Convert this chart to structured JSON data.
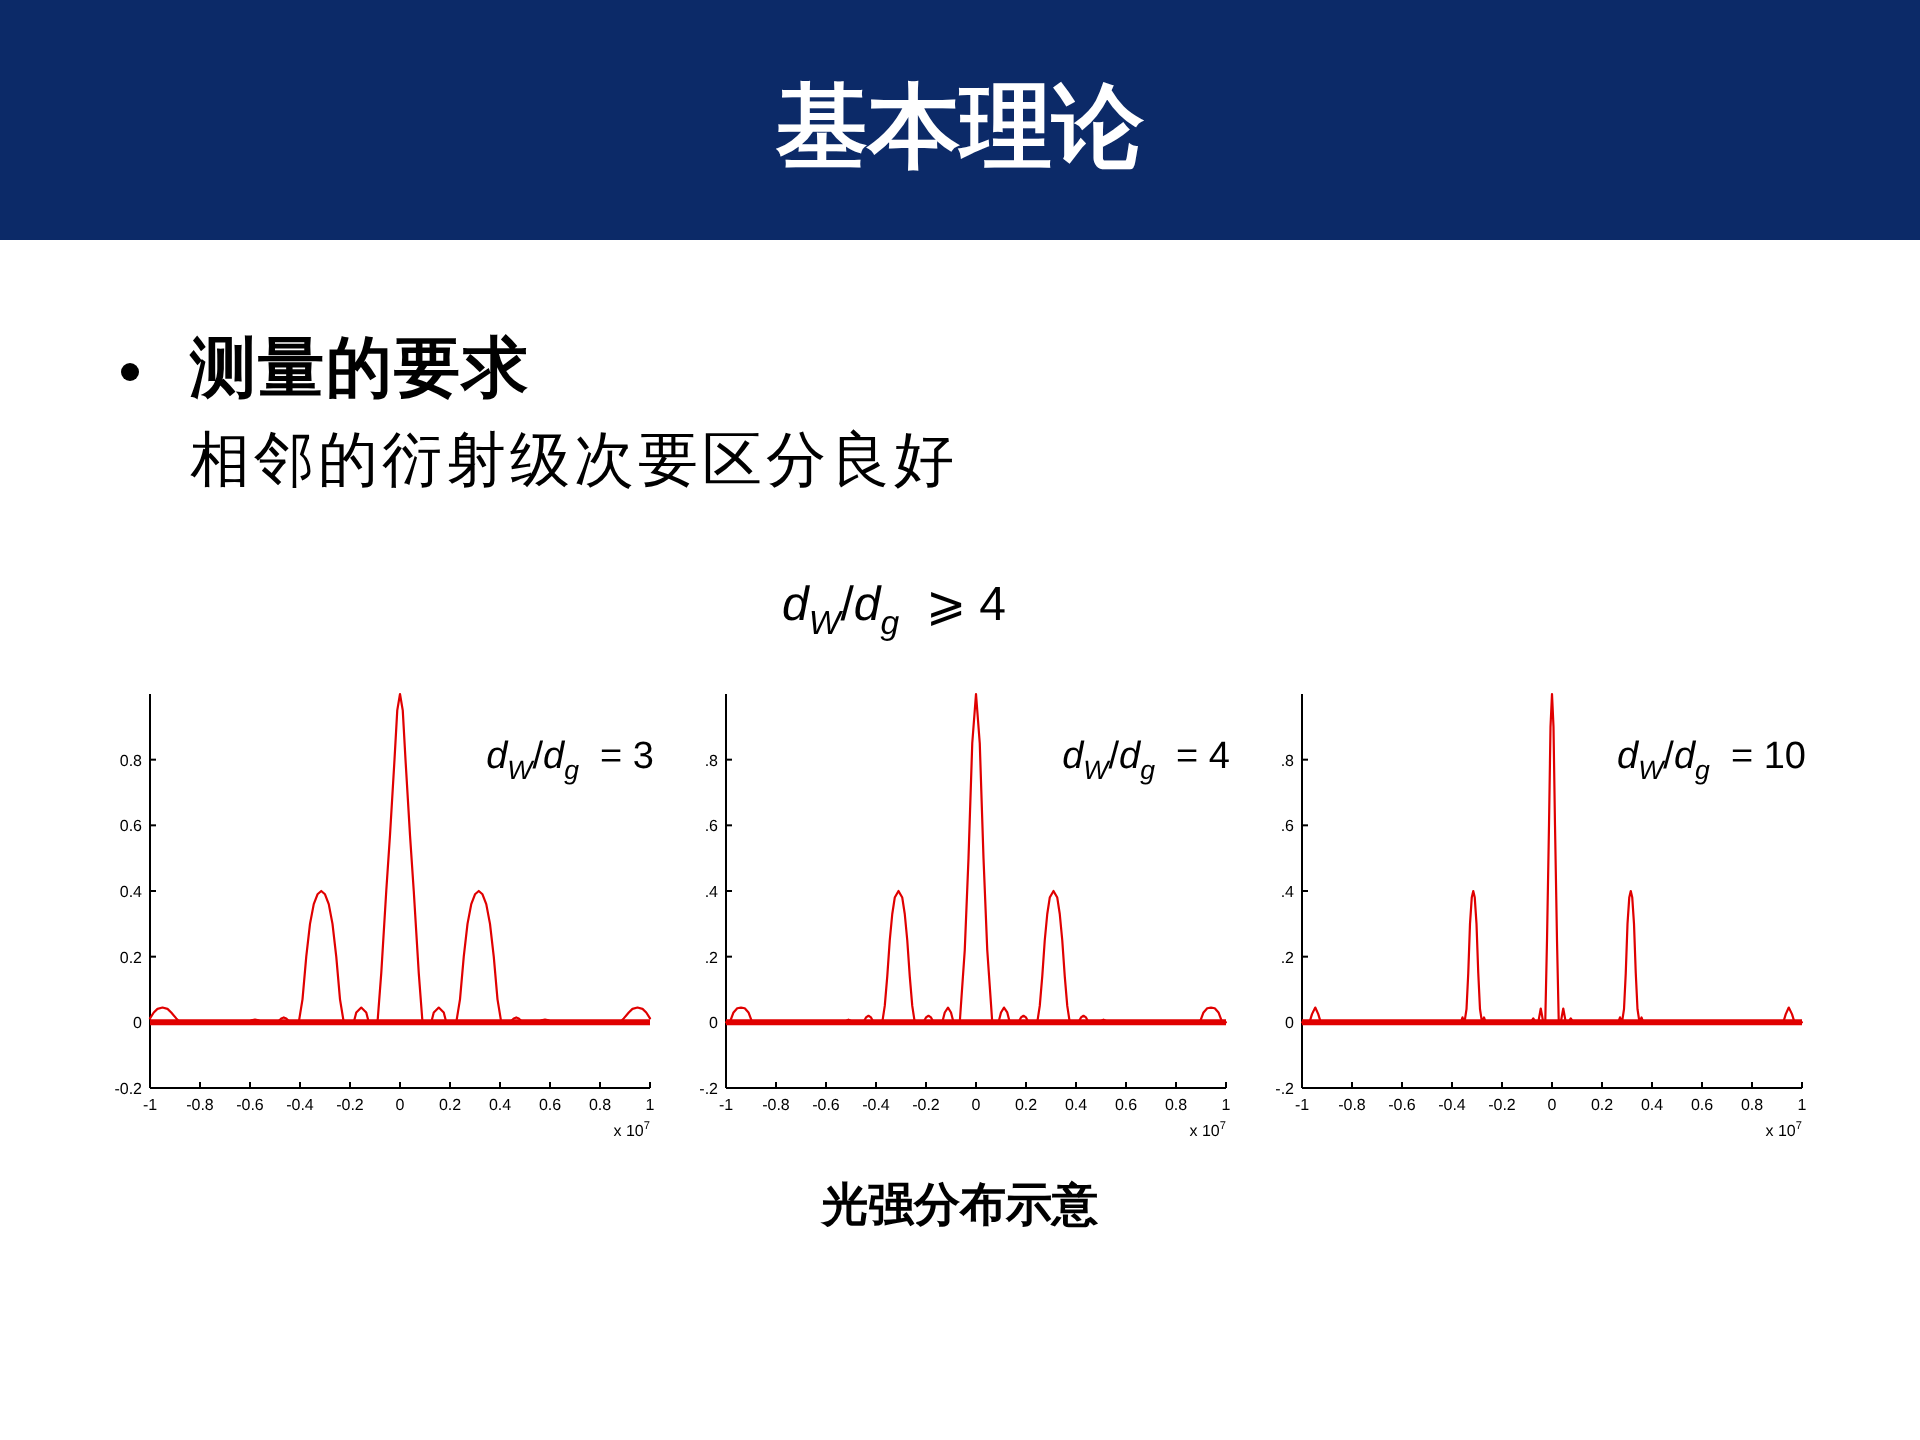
{
  "chart_data": [
    {
      "type": "other",
      "title": "基本理论",
      "annotations": [
        "测量的要求",
        "相邻的衍射级次要区分良好",
        "d$_{W}$/d$_{g}$  ⩾ 4",
        "光强分布示意"
      ]
    },
    {
      "type": "line",
      "annotations": [
        "d$_{W}$/d$_{g}$  = 3"
      ],
      "xlabel": "x 10$^{7}$",
      "xlim": [
        -1,
        1
      ],
      "ylim": [
        -0.2,
        1
      ],
      "xticks": [
        -1,
        -0.8,
        -0.6,
        -0.4,
        -0.2,
        0,
        0.2,
        0.4,
        0.6,
        0.8,
        1
      ],
      "yticks": [
        -0.2,
        0,
        0.2,
        0.4,
        0.6,
        0.8
      ],
      "ref_lines": [
        {
          "axis": "y",
          "value": 0,
          "color": "#e00000"
        }
      ],
      "x": [
        -1,
        -0.985,
        -0.97,
        -0.95,
        -0.93,
        -0.915,
        -0.895,
        -0.88,
        -0.61,
        -0.595,
        -0.58,
        -0.565,
        -0.55,
        -0.49,
        -0.475,
        -0.465,
        -0.455,
        -0.44,
        -0.405,
        -0.39,
        -0.375,
        -0.36,
        -0.345,
        -0.33,
        -0.315,
        -0.3,
        -0.285,
        -0.27,
        -0.255,
        -0.24,
        -0.225,
        -0.185,
        -0.175,
        -0.155,
        -0.135,
        -0.125,
        -0.09,
        -0.075,
        -0.055,
        -0.04,
        -0.022,
        -0.011,
        0,
        0.011,
        0.022,
        0.04,
        0.055,
        0.075,
        0.09,
        0.125,
        0.135,
        0.155,
        0.175,
        0.185,
        0.225,
        0.24,
        0.255,
        0.27,
        0.285,
        0.3,
        0.315,
        0.33,
        0.345,
        0.36,
        0.375,
        0.39,
        0.405,
        0.44,
        0.455,
        0.465,
        0.475,
        0.49,
        0.55,
        0.565,
        0.58,
        0.595,
        0.61,
        0.88,
        0.895,
        0.915,
        0.93,
        0.95,
        0.97,
        0.985,
        1
      ],
      "series": [
        {
          "color": "#e00000",
          "values": [
            0.012,
            0.03,
            0.041,
            0.045,
            0.041,
            0.03,
            0.012,
            0,
            0,
            0.006,
            0.008,
            0.006,
            0,
            0,
            0.012,
            0.015,
            0.012,
            0,
            0,
            0.07,
            0.2,
            0.3,
            0.36,
            0.39,
            0.4,
            0.39,
            0.36,
            0.3,
            0.2,
            0.07,
            0,
            0,
            0.03,
            0.045,
            0.03,
            0,
            0,
            0.15,
            0.4,
            0.57,
            0.8,
            0.95,
            1,
            0.95,
            0.8,
            0.57,
            0.4,
            0.15,
            0,
            0,
            0.03,
            0.045,
            0.03,
            0,
            0,
            0.07,
            0.2,
            0.3,
            0.36,
            0.39,
            0.4,
            0.39,
            0.36,
            0.3,
            0.2,
            0.07,
            0,
            0,
            0.012,
            0.015,
            0.012,
            0,
            0,
            0.006,
            0.008,
            0.006,
            0,
            0,
            0.012,
            0.03,
            0.041,
            0.045,
            0.041,
            0.03,
            0.012
          ]
        }
      ]
    },
    {
      "type": "line",
      "annotations": [
        "d$_{W}$/d$_{g}$  = 4"
      ],
      "xlabel": "x 10$^{7}$",
      "xlim": [
        -1,
        1
      ],
      "ylim": [
        -0.2,
        1
      ],
      "xticks": [
        -1,
        -0.8,
        -0.6,
        -0.4,
        -0.2,
        0,
        0.2,
        0.4,
        0.6,
        0.8,
        1
      ],
      "yticks": [
        {
          "value": -0.2,
          "label": "-.2"
        },
        {
          "value": 0,
          "label": "0"
        },
        {
          "value": 0.2,
          "label": ".2"
        },
        {
          "value": 0.4,
          "label": ".4"
        },
        {
          "value": 0.6,
          "label": ".6"
        },
        {
          "value": 0.8,
          "label": ".8"
        }
      ],
      "ref_lines": [
        {
          "axis": "y",
          "value": 0,
          "color": "#e00000"
        }
      ],
      "x": [
        -1,
        -0.985,
        -0.97,
        -0.955,
        -0.94,
        -0.925,
        -0.91,
        -0.895,
        -0.53,
        -0.51,
        -0.49,
        -0.45,
        -0.44,
        -0.43,
        -0.42,
        -0.41,
        -0.375,
        -0.365,
        -0.355,
        -0.345,
        -0.335,
        -0.325,
        -0.31,
        -0.295,
        -0.285,
        -0.275,
        -0.265,
        -0.255,
        -0.245,
        -0.21,
        -0.2,
        -0.19,
        -0.18,
        -0.17,
        -0.135,
        -0.125,
        -0.112,
        -0.1,
        -0.09,
        -0.065,
        -0.045,
        -0.03,
        -0.015,
        0,
        0.015,
        0.03,
        0.045,
        0.065,
        0.09,
        0.1,
        0.112,
        0.125,
        0.135,
        0.17,
        0.18,
        0.19,
        0.2,
        0.21,
        0.245,
        0.255,
        0.265,
        0.275,
        0.285,
        0.295,
        0.31,
        0.325,
        0.335,
        0.345,
        0.355,
        0.365,
        0.375,
        0.41,
        0.42,
        0.43,
        0.44,
        0.45,
        0.49,
        0.51,
        0.53,
        0.895,
        0.91,
        0.925,
        0.94,
        0.955,
        0.97,
        0.985,
        1
      ],
      "series": [
        {
          "color": "#e00000",
          "values": [
            0,
            0,
            0.03,
            0.043,
            0.045,
            0.043,
            0.03,
            0,
            0,
            0.008,
            0,
            0,
            0.015,
            0.02,
            0.015,
            0,
            0,
            0.05,
            0.14,
            0.25,
            0.33,
            0.38,
            0.4,
            0.38,
            0.33,
            0.25,
            0.14,
            0.05,
            0,
            0,
            0.015,
            0.02,
            0.015,
            0,
            0,
            0.03,
            0.045,
            0.03,
            0,
            0,
            0.22,
            0.5,
            0.85,
            1,
            0.85,
            0.5,
            0.22,
            0,
            0,
            0.03,
            0.045,
            0.03,
            0,
            0,
            0.015,
            0.02,
            0.015,
            0,
            0,
            0.05,
            0.14,
            0.25,
            0.33,
            0.38,
            0.4,
            0.38,
            0.33,
            0.25,
            0.14,
            0.05,
            0,
            0,
            0.015,
            0.02,
            0.015,
            0,
            0,
            0.008,
            0,
            0,
            0.03,
            0.043,
            0.045,
            0.043,
            0.03,
            0,
            0
          ]
        }
      ]
    },
    {
      "type": "line",
      "annotations": [
        "d$_{W}$/d$_{g}$  = 10"
      ],
      "xlabel": "x 10$^{7}$",
      "xlim": [
        -1,
        1
      ],
      "ylim": [
        -0.2,
        1
      ],
      "xticks": [
        -1,
        -0.8,
        -0.6,
        -0.4,
        -0.2,
        0,
        0.2,
        0.4,
        0.6,
        0.8,
        1
      ],
      "yticks": [
        {
          "value": -0.2,
          "label": "-.2"
        },
        {
          "value": 0,
          "label": "0"
        },
        {
          "value": 0.2,
          "label": ".2"
        },
        {
          "value": 0.4,
          "label": ".4"
        },
        {
          "value": 0.6,
          "label": ".6"
        },
        {
          "value": 0.8,
          "label": ".8"
        }
      ],
      "ref_lines": [
        {
          "axis": "y",
          "value": 0,
          "color": "#e00000"
        }
      ],
      "x": [
        -1,
        -0.97,
        -0.96,
        -0.947,
        -0.935,
        -0.925,
        -0.365,
        -0.358,
        -0.35,
        -0.342,
        -0.335,
        -0.328,
        -0.321,
        -0.315,
        -0.309,
        -0.302,
        -0.295,
        -0.288,
        -0.28,
        -0.272,
        -0.265,
        -0.085,
        -0.075,
        -0.065,
        -0.055,
        -0.045,
        -0.035,
        -0.027,
        -0.02,
        -0.012,
        -0.006,
        0,
        0.006,
        0.012,
        0.02,
        0.027,
        0.035,
        0.045,
        0.055,
        0.065,
        0.075,
        0.085,
        0.265,
        0.272,
        0.28,
        0.288,
        0.295,
        0.302,
        0.309,
        0.315,
        0.321,
        0.328,
        0.335,
        0.342,
        0.35,
        0.358,
        0.365,
        0.925,
        0.935,
        0.947,
        0.96,
        0.97,
        1
      ],
      "series": [
        {
          "color": "#e00000",
          "values": [
            0,
            0,
            0.025,
            0.045,
            0.025,
            0,
            0,
            0.015,
            0,
            0.04,
            0.15,
            0.3,
            0.38,
            0.4,
            0.38,
            0.3,
            0.15,
            0.04,
            0,
            0.015,
            0,
            0,
            0.012,
            0,
            0,
            0.042,
            0,
            0,
            0.25,
            0.6,
            0.9,
            1,
            0.9,
            0.6,
            0.25,
            0,
            0,
            0.042,
            0,
            0,
            0.012,
            0,
            0,
            0.015,
            0,
            0.04,
            0.15,
            0.3,
            0.38,
            0.4,
            0.38,
            0.3,
            0.15,
            0.04,
            0,
            0.015,
            0,
            0,
            0.025,
            0.045,
            0.025,
            0,
            0
          ]
        }
      ]
    }
  ]
}
